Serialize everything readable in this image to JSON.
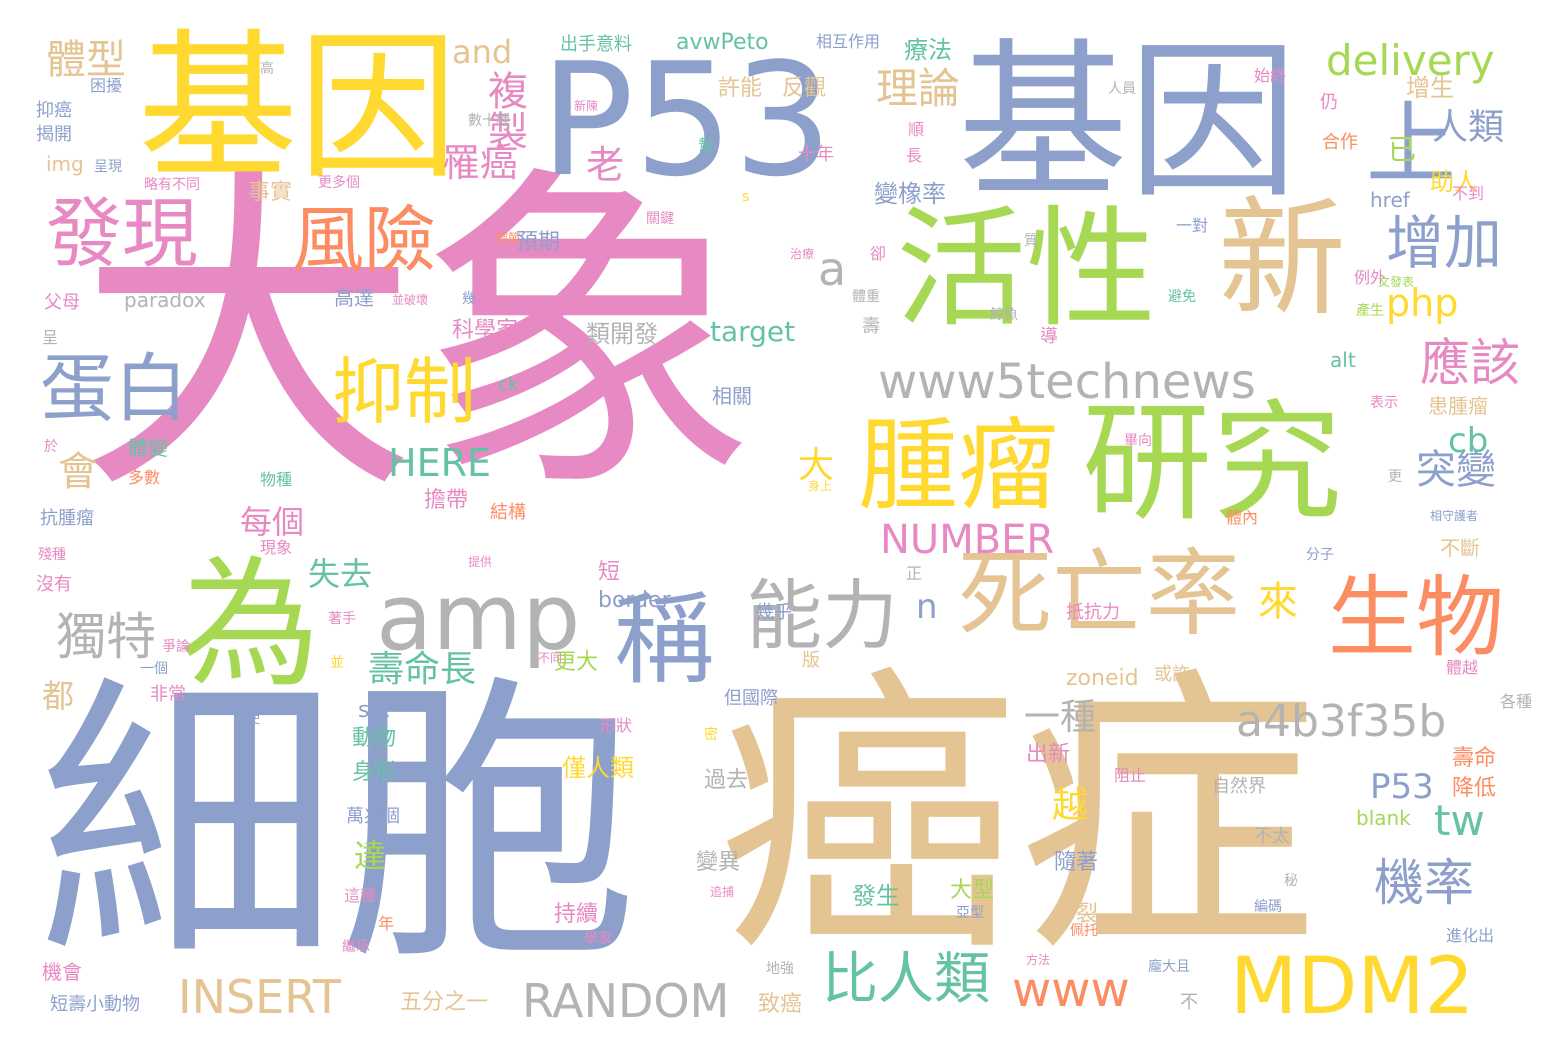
{
  "colors": {
    "pink": "#e78ac3",
    "blue": "#8da0cb",
    "tan": "#e5c494",
    "green": "#a6d854",
    "yellow": "#ffd92f",
    "orange": "#fc8d62",
    "teal": "#66c2a5",
    "gray": "#b3b3b3"
  },
  "words": [
    {
      "text": "大象",
      "color": "pink"
    },
    {
      "text": "細胞",
      "color": "blue"
    },
    {
      "text": "癌症",
      "color": "tan"
    },
    {
      "text": "基因",
      "color": "blue"
    },
    {
      "text": "基因",
      "color": "yellow"
    },
    {
      "text": "P53",
      "color": "blue"
    },
    {
      "text": "活性",
      "color": "green"
    },
    {
      "text": "研究",
      "color": "green"
    },
    {
      "text": "新",
      "color": "tan"
    },
    {
      "text": "為",
      "color": "green"
    },
    {
      "text": "腫瘤",
      "color": "yellow"
    },
    {
      "text": "死亡率",
      "color": "tan"
    },
    {
      "text": "生物",
      "color": "orange"
    },
    {
      "text": "MDM2",
      "color": "yellow"
    },
    {
      "text": "amp",
      "color": "gray"
    },
    {
      "text": "能力",
      "color": "gray"
    },
    {
      "text": "發現",
      "color": "pink"
    },
    {
      "text": "風險",
      "color": "orange"
    },
    {
      "text": "抑制",
      "color": "yellow"
    },
    {
      "text": "蛋白",
      "color": "blue"
    },
    {
      "text": "上",
      "color": "blue"
    },
    {
      "text": "稱",
      "color": "blue"
    },
    {
      "text": "增加",
      "color": "blue"
    },
    {
      "text": "www5technews",
      "color": "gray"
    },
    {
      "text": "比人類",
      "color": "teal"
    },
    {
      "text": "RANDOM",
      "color": "gray"
    },
    {
      "text": "INSERT",
      "color": "tan"
    },
    {
      "text": "www",
      "color": "orange"
    },
    {
      "text": "a4b3f35b",
      "color": "gray"
    },
    {
      "text": "應該",
      "color": "pink"
    },
    {
      "text": "機率",
      "color": "blue"
    },
    {
      "text": "獨特",
      "color": "gray"
    },
    {
      "text": "delivery",
      "color": "green"
    },
    {
      "text": "理論",
      "color": "tan"
    },
    {
      "text": "體型",
      "color": "tan"
    },
    {
      "text": "複製",
      "color": "pink"
    },
    {
      "text": "罹癌",
      "color": "pink"
    },
    {
      "text": "老",
      "color": "pink"
    },
    {
      "text": "HERE",
      "color": "teal"
    },
    {
      "text": "NUMBER",
      "color": "pink"
    },
    {
      "text": "php",
      "color": "yellow"
    },
    {
      "text": "突變",
      "color": "blue"
    },
    {
      "text": "人類",
      "color": "blue"
    },
    {
      "text": "a",
      "color": "gray"
    },
    {
      "text": "壽命長",
      "color": "teal"
    },
    {
      "text": "tw",
      "color": "teal"
    },
    {
      "text": "cb",
      "color": "teal"
    },
    {
      "text": "一種",
      "color": "gray"
    },
    {
      "text": "會",
      "color": "tan"
    },
    {
      "text": "每個",
      "color": "pink"
    },
    {
      "text": "失去",
      "color": "teal"
    },
    {
      "text": "大",
      "color": "yellow"
    },
    {
      "text": "來",
      "color": "yellow"
    },
    {
      "text": "n",
      "color": "blue"
    },
    {
      "text": "P53",
      "color": "blue"
    },
    {
      "text": "越",
      "color": "yellow"
    },
    {
      "text": "已",
      "color": "green"
    },
    {
      "text": "and",
      "color": "tan"
    },
    {
      "text": "達",
      "color": "green"
    },
    {
      "text": "都",
      "color": "tan"
    },
    {
      "text": "出手意料",
      "color": "teal"
    },
    {
      "text": "avwPeto",
      "color": "teal"
    },
    {
      "text": "相互作用",
      "color": "blue"
    },
    {
      "text": "療法",
      "color": "teal"
    },
    {
      "text": "許能",
      "color": "tan"
    },
    {
      "text": "反觀",
      "color": "tan"
    },
    {
      "text": "增生",
      "color": "tan"
    },
    {
      "text": "助人",
      "color": "yellow"
    },
    {
      "text": "變橡率",
      "color": "blue"
    },
    {
      "text": "事實",
      "color": "tan"
    },
    {
      "text": "預期",
      "color": "blue"
    },
    {
      "text": "target",
      "color": "teal"
    },
    {
      "text": "類開發",
      "color": "gray"
    },
    {
      "text": "科學家",
      "color": "pink"
    },
    {
      "text": "paradox",
      "color": "gray"
    },
    {
      "text": "高達",
      "color": "blue"
    },
    {
      "text": "img",
      "color": "tan"
    },
    {
      "text": "border",
      "color": "blue"
    },
    {
      "text": "zoneid",
      "color": "tan"
    },
    {
      "text": "src",
      "color": "blue"
    },
    {
      "text": "動物",
      "color": "teal"
    },
    {
      "text": "身形",
      "color": "teal"
    },
    {
      "text": "僅人類",
      "color": "yellow"
    },
    {
      "text": "過去",
      "color": "gray"
    },
    {
      "text": "變異",
      "color": "gray"
    },
    {
      "text": "持續",
      "color": "pink"
    },
    {
      "text": "發生",
      "color": "teal"
    },
    {
      "text": "大型",
      "color": "green"
    },
    {
      "text": "分裂",
      "color": "tan"
    },
    {
      "text": "出新",
      "color": "pink"
    },
    {
      "text": "隨著",
      "color": "blue"
    },
    {
      "text": "blank",
      "color": "green"
    },
    {
      "text": "href",
      "color": "blue"
    },
    {
      "text": "alt",
      "color": "teal"
    },
    {
      "text": "壽命",
      "color": "orange"
    },
    {
      "text": "降低",
      "color": "orange"
    },
    {
      "text": "更大",
      "color": "green"
    },
    {
      "text": "擔帶",
      "color": "pink"
    },
    {
      "text": "結構",
      "color": "orange"
    },
    {
      "text": "短",
      "color": "pink"
    },
    {
      "text": "體變",
      "color": "teal"
    },
    {
      "text": "相關",
      "color": "blue"
    },
    {
      "text": "患腫瘤",
      "color": "tan"
    },
    {
      "text": "不斷",
      "color": "tan"
    },
    {
      "text": "ck",
      "color": "teal"
    },
    {
      "text": "五分之一",
      "color": "tan"
    },
    {
      "text": "致癌",
      "color": "tan"
    },
    {
      "text": "短壽小動物",
      "color": "blue"
    },
    {
      "text": "機會",
      "color": "pink"
    },
    {
      "text": "萬兆個",
      "color": "blue"
    },
    {
      "text": "自然界",
      "color": "gray"
    },
    {
      "text": "不太",
      "color": "gray"
    },
    {
      "text": "父母",
      "color": "pink"
    },
    {
      "text": "抗腫瘤",
      "color": "blue"
    },
    {
      "text": "多數",
      "color": "orange"
    },
    {
      "text": "物種",
      "color": "teal"
    },
    {
      "text": "現象",
      "color": "pink"
    },
    {
      "text": "抑癌",
      "color": "blue"
    },
    {
      "text": "揭開",
      "color": "blue"
    },
    {
      "text": "困擾",
      "color": "blue"
    },
    {
      "text": "數十種",
      "color": "gray"
    },
    {
      "text": "十年",
      "color": "pink"
    },
    {
      "text": "合作",
      "color": "orange"
    },
    {
      "text": "例外",
      "color": "pink"
    },
    {
      "text": "不到",
      "color": "pink"
    },
    {
      "text": "沒有",
      "color": "pink"
    },
    {
      "text": "非常",
      "color": "pink"
    },
    {
      "text": "都",
      "color": "tan"
    },
    {
      "text": "阻止",
      "color": "pink"
    },
    {
      "text": "始終",
      "color": "pink"
    },
    {
      "text": "仍",
      "color": "pink"
    },
    {
      "text": "表示",
      "color": "pink"
    },
    {
      "text": "各種",
      "color": "gray"
    },
    {
      "text": "或許",
      "color": "tan"
    },
    {
      "text": "抵抗力",
      "color": "pink"
    },
    {
      "text": "版",
      "color": "tan"
    },
    {
      "text": "幾乎",
      "color": "blue"
    },
    {
      "text": "但國際",
      "color": "blue"
    },
    {
      "text": "形狀",
      "color": "pink"
    },
    {
      "text": "不",
      "color": "gray"
    },
    {
      "text": "這種",
      "color": "pink"
    },
    {
      "text": "年",
      "color": "orange"
    },
    {
      "text": "體內",
      "color": "orange"
    },
    {
      "text": "分子",
      "color": "blue"
    },
    {
      "text": "體越",
      "color": "pink"
    },
    {
      "text": "一對",
      "color": "blue"
    },
    {
      "text": "避免",
      "color": "teal"
    },
    {
      "text": "產生",
      "color": "green"
    },
    {
      "text": "鯨魚",
      "color": "gray"
    },
    {
      "text": "畢向",
      "color": "pink"
    },
    {
      "text": "進化出",
      "color": "blue"
    },
    {
      "text": "關鍵",
      "color": "pink"
    },
    {
      "text": "呈現",
      "color": "blue"
    },
    {
      "text": "略有不同",
      "color": "pink"
    },
    {
      "text": "更多個",
      "color": "pink"
    },
    {
      "text": "幾",
      "color": "blue"
    },
    {
      "text": "並",
      "color": "yellow"
    },
    {
      "text": "密",
      "color": "yellow"
    },
    {
      "text": "使",
      "color": "blue"
    },
    {
      "text": "一個",
      "color": "blue"
    },
    {
      "text": "正",
      "color": "gray"
    },
    {
      "text": "導",
      "color": "pink"
    },
    {
      "text": "壽",
      "color": "gray"
    },
    {
      "text": "卻",
      "color": "pink"
    },
    {
      "text": "質",
      "color": "gray"
    },
    {
      "text": "s",
      "color": "yellow"
    },
    {
      "text": "高",
      "color": "gray"
    },
    {
      "text": "呈",
      "color": "gray"
    },
    {
      "text": "於",
      "color": "pink"
    },
    {
      "text": "從",
      "color": "tan"
    },
    {
      "text": "人員",
      "color": "gray"
    },
    {
      "text": "更",
      "color": "gray"
    },
    {
      "text": "秘",
      "color": "gray"
    },
    {
      "text": "長",
      "color": "pink"
    },
    {
      "text": "幫",
      "color": "teal"
    },
    {
      "text": "新陳",
      "color": "pink"
    },
    {
      "text": "順",
      "color": "pink"
    },
    {
      "text": "體重",
      "color": "gray"
    },
    {
      "text": "調節",
      "color": "orange"
    },
    {
      "text": "編碼",
      "color": "blue"
    },
    {
      "text": "地強",
      "color": "gray"
    },
    {
      "text": "方法",
      "color": "pink"
    },
    {
      "text": "龐大且",
      "color": "blue"
    },
    {
      "text": "亞型",
      "color": "blue"
    },
    {
      "text": "佩托",
      "color": "orange"
    },
    {
      "text": "學家",
      "color": "pink"
    },
    {
      "text": "繼承",
      "color": "pink"
    },
    {
      "text": "不同",
      "color": "pink"
    },
    {
      "text": "著手",
      "color": "pink"
    },
    {
      "text": "提供",
      "color": "pink"
    },
    {
      "text": "身上",
      "color": "yellow"
    },
    {
      "text": "相守護者",
      "color": "blue"
    },
    {
      "text": "文發表",
      "color": "green"
    },
    {
      "text": "殘種",
      "color": "pink"
    },
    {
      "text": "爭論",
      "color": "pink"
    },
    {
      "text": "並破壞",
      "color": "pink"
    },
    {
      "text": "治療",
      "color": "pink"
    },
    {
      "text": "追捕",
      "color": "pink"
    }
  ]
}
